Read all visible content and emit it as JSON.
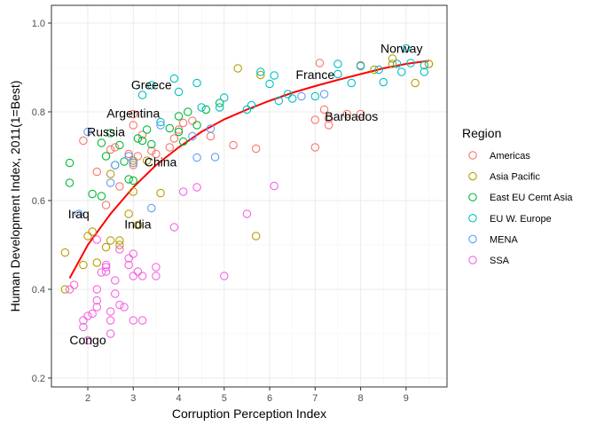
{
  "chart_data": {
    "type": "scatter",
    "xlabel": "Corruption Perception Index",
    "ylabel": "Human Development Index, 2011(1=Best)",
    "xlim": [
      1.2,
      9.9
    ],
    "ylim": [
      0.18,
      1.04
    ],
    "x_ticks": [
      "2",
      "3",
      "4",
      "5",
      "6",
      "7",
      "8",
      "9"
    ],
    "y_ticks": [
      "0.2",
      "0.4",
      "0.6",
      "0.8",
      "1.0"
    ],
    "grid": true,
    "legend": {
      "title": "Region",
      "position": "right",
      "entries": [
        {
          "label": "Americas",
          "color": "#F8766D"
        },
        {
          "label": "Asia Pacific",
          "color": "#B79F00"
        },
        {
          "label": "East EU Cemt Asia",
          "color": "#00BA38"
        },
        {
          "label": "EU W. Europe",
          "color": "#00BFC4"
        },
        {
          "label": "MENA",
          "color": "#619CFF"
        },
        {
          "label": "SSA",
          "color": "#F564E3"
        }
      ]
    },
    "trend_line": {
      "color": "#FF0000",
      "points": [
        [
          1.6,
          0.425
        ],
        [
          2.0,
          0.5
        ],
        [
          2.5,
          0.57
        ],
        [
          3.0,
          0.63
        ],
        [
          3.5,
          0.68
        ],
        [
          4.0,
          0.72
        ],
        [
          4.5,
          0.755
        ],
        [
          5.0,
          0.783
        ],
        [
          5.5,
          0.805
        ],
        [
          6.0,
          0.825
        ],
        [
          6.5,
          0.843
        ],
        [
          7.0,
          0.858
        ],
        [
          7.5,
          0.872
        ],
        [
          8.0,
          0.885
        ],
        [
          8.5,
          0.898
        ],
        [
          9.0,
          0.908
        ],
        [
          9.5,
          0.915
        ]
      ]
    },
    "series": [
      {
        "name": "Americas",
        "points": [
          [
            1.9,
            0.735
          ],
          [
            2.2,
            0.665
          ],
          [
            2.4,
            0.59
          ],
          [
            2.5,
            0.715
          ],
          [
            2.6,
            0.72
          ],
          [
            2.7,
            0.632
          ],
          [
            2.9,
            0.705
          ],
          [
            3.0,
            0.795
          ],
          [
            3.0,
            0.77
          ],
          [
            3.0,
            0.68
          ],
          [
            3.1,
            0.7
          ],
          [
            3.2,
            0.748
          ],
          [
            3.4,
            0.712
          ],
          [
            3.5,
            0.705
          ],
          [
            3.8,
            0.72
          ],
          [
            3.9,
            0.74
          ],
          [
            4.0,
            0.76
          ],
          [
            4.1,
            0.775
          ],
          [
            4.3,
            0.78
          ],
          [
            4.7,
            0.745
          ],
          [
            5.2,
            0.725
          ],
          [
            5.7,
            0.717
          ],
          [
            7.0,
            0.72
          ],
          [
            7.0,
            0.782
          ],
          [
            7.1,
            0.91
          ],
          [
            7.2,
            0.805
          ],
          [
            7.3,
            0.785
          ],
          [
            7.3,
            0.77
          ],
          [
            7.7,
            0.795
          ],
          [
            8.0,
            0.795
          ],
          [
            8.0,
            0.905
          ],
          [
            9.5,
            0.908
          ]
        ]
      },
      {
        "name": "Asia Pacific",
        "points": [
          [
            1.5,
            0.483
          ],
          [
            1.5,
            0.4
          ],
          [
            1.9,
            0.455
          ],
          [
            2.0,
            0.52
          ],
          [
            2.1,
            0.53
          ],
          [
            2.2,
            0.46
          ],
          [
            2.4,
            0.495
          ],
          [
            2.5,
            0.51
          ],
          [
            2.5,
            0.66
          ],
          [
            2.7,
            0.5
          ],
          [
            2.7,
            0.51
          ],
          [
            2.9,
            0.57
          ],
          [
            3.0,
            0.62
          ],
          [
            3.0,
            0.69
          ],
          [
            3.1,
            0.545
          ],
          [
            3.3,
            0.69
          ],
          [
            3.6,
            0.617
          ],
          [
            5.3,
            0.898
          ],
          [
            5.7,
            0.52
          ],
          [
            5.8,
            0.883
          ],
          [
            8.3,
            0.895
          ],
          [
            8.7,
            0.908
          ],
          [
            8.7,
            0.92
          ],
          [
            9.2,
            0.865
          ],
          [
            9.5,
            0.908
          ]
        ]
      },
      {
        "name": "East EU Cemt Asia",
        "points": [
          [
            1.6,
            0.685
          ],
          [
            1.6,
            0.64
          ],
          [
            2.1,
            0.615
          ],
          [
            2.3,
            0.61
          ],
          [
            2.3,
            0.73
          ],
          [
            2.4,
            0.7
          ],
          [
            2.5,
            0.752
          ],
          [
            2.6,
            0.68
          ],
          [
            2.7,
            0.725
          ],
          [
            2.8,
            0.688
          ],
          [
            2.9,
            0.648
          ],
          [
            3.0,
            0.645
          ],
          [
            3.1,
            0.74
          ],
          [
            3.2,
            0.735
          ],
          [
            3.3,
            0.76
          ],
          [
            3.4,
            0.727
          ],
          [
            3.8,
            0.763
          ],
          [
            4.0,
            0.755
          ],
          [
            4.0,
            0.79
          ],
          [
            4.1,
            0.733
          ],
          [
            4.2,
            0.8
          ],
          [
            4.4,
            0.77
          ],
          [
            4.6,
            0.805
          ],
          [
            4.9,
            0.82
          ]
        ]
      },
      {
        "name": "EU W. Europe",
        "points": [
          [
            3.2,
            0.838
          ],
          [
            3.4,
            0.86
          ],
          [
            3.6,
            0.777
          ],
          [
            3.9,
            0.875
          ],
          [
            4.0,
            0.845
          ],
          [
            4.4,
            0.865
          ],
          [
            4.5,
            0.81
          ],
          [
            4.9,
            0.81
          ],
          [
            5.0,
            0.832
          ],
          [
            5.5,
            0.805
          ],
          [
            5.6,
            0.815
          ],
          [
            5.8,
            0.89
          ],
          [
            6.0,
            0.863
          ],
          [
            6.1,
            0.882
          ],
          [
            6.2,
            0.825
          ],
          [
            6.4,
            0.84
          ],
          [
            6.5,
            0.83
          ],
          [
            7.0,
            0.835
          ],
          [
            7.5,
            0.885
          ],
          [
            7.5,
            0.908
          ],
          [
            7.8,
            0.865
          ],
          [
            8.0,
            0.903
          ],
          [
            8.4,
            0.895
          ],
          [
            8.5,
            0.867
          ],
          [
            8.8,
            0.908
          ],
          [
            8.9,
            0.89
          ],
          [
            9.0,
            0.943
          ],
          [
            9.1,
            0.91
          ],
          [
            9.4,
            0.89
          ],
          [
            9.4,
            0.905
          ]
        ]
      },
      {
        "name": "MENA",
        "points": [
          [
            1.8,
            0.57
          ],
          [
            2.0,
            0.755
          ],
          [
            2.5,
            0.64
          ],
          [
            2.6,
            0.68
          ],
          [
            2.9,
            0.7
          ],
          [
            3.0,
            0.685
          ],
          [
            3.4,
            0.583
          ],
          [
            3.6,
            0.77
          ],
          [
            4.3,
            0.745
          ],
          [
            4.4,
            0.697
          ],
          [
            4.7,
            0.762
          ],
          [
            4.8,
            0.698
          ],
          [
            6.7,
            0.835
          ],
          [
            7.2,
            0.84
          ]
        ]
      },
      {
        "name": "SSA",
        "points": [
          [
            1.6,
            0.4
          ],
          [
            1.7,
            0.41
          ],
          [
            1.9,
            0.315
          ],
          [
            1.9,
            0.33
          ],
          [
            2.0,
            0.285
          ],
          [
            2.0,
            0.34
          ],
          [
            2.1,
            0.345
          ],
          [
            2.2,
            0.36
          ],
          [
            2.2,
            0.375
          ],
          [
            2.2,
            0.4
          ],
          [
            2.3,
            0.438
          ],
          [
            2.4,
            0.44
          ],
          [
            2.4,
            0.45
          ],
          [
            2.4,
            0.455
          ],
          [
            2.5,
            0.3
          ],
          [
            2.5,
            0.35
          ],
          [
            2.5,
            0.33
          ],
          [
            2.6,
            0.42
          ],
          [
            2.6,
            0.39
          ],
          [
            2.7,
            0.365
          ],
          [
            2.8,
            0.36
          ],
          [
            2.9,
            0.455
          ],
          [
            2.9,
            0.47
          ],
          [
            3.0,
            0.33
          ],
          [
            3.0,
            0.43
          ],
          [
            3.0,
            0.48
          ],
          [
            3.1,
            0.44
          ],
          [
            3.2,
            0.33
          ],
          [
            3.2,
            0.43
          ],
          [
            3.5,
            0.43
          ],
          [
            3.5,
            0.45
          ],
          [
            3.9,
            0.54
          ],
          [
            4.1,
            0.62
          ],
          [
            4.4,
            0.63
          ],
          [
            5.0,
            0.43
          ],
          [
            5.5,
            0.57
          ],
          [
            6.1,
            0.633
          ],
          [
            2.2,
            0.512
          ],
          [
            2.7,
            0.49
          ]
        ]
      }
    ],
    "annotations": [
      {
        "text": "Norway",
        "x": 8.9,
        "y": 0.943
      },
      {
        "text": "France",
        "x": 7.0,
        "y": 0.884
      },
      {
        "text": "Greece",
        "x": 3.4,
        "y": 0.861
      },
      {
        "text": "Barbados",
        "x": 7.8,
        "y": 0.79
      },
      {
        "text": "Argentina",
        "x": 3.0,
        "y": 0.797
      },
      {
        "text": "Russia",
        "x": 2.4,
        "y": 0.755
      },
      {
        "text": "China",
        "x": 3.6,
        "y": 0.687
      },
      {
        "text": "Iraq",
        "x": 1.8,
        "y": 0.57
      },
      {
        "text": "India",
        "x": 3.1,
        "y": 0.547
      },
      {
        "text": "Congo",
        "x": 2.0,
        "y": 0.286
      }
    ]
  }
}
